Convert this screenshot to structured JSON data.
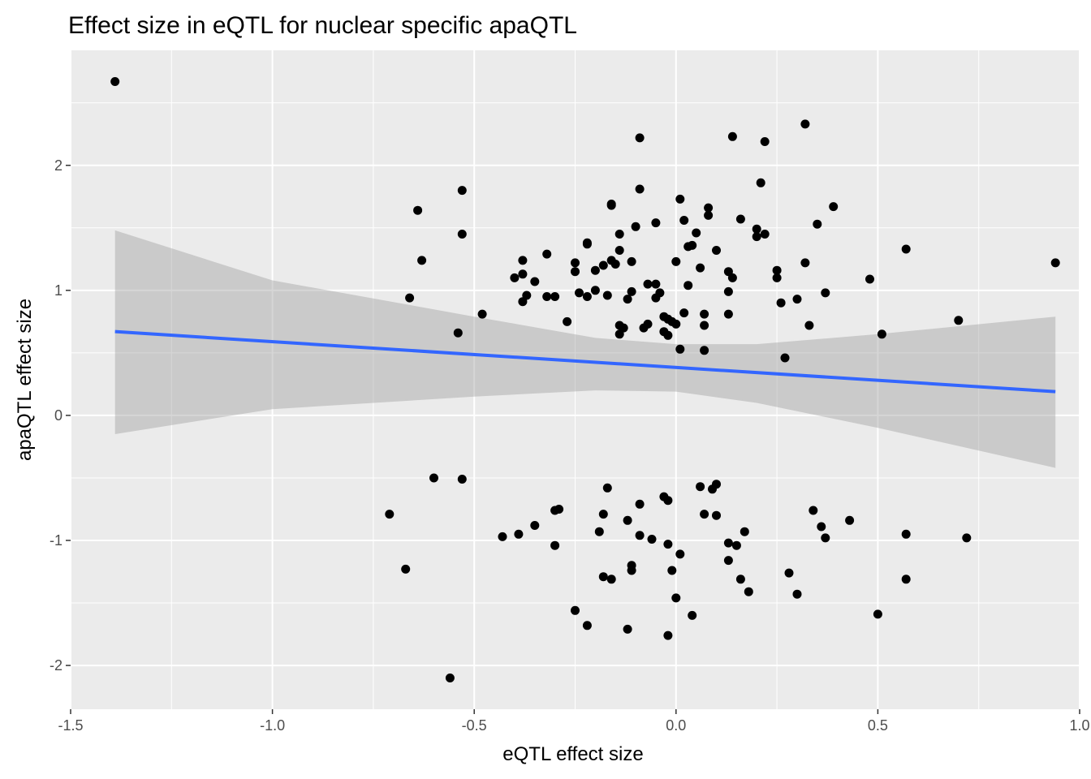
{
  "chart_data": {
    "type": "scatter",
    "title": "Effect size in eQTL for nuclear specific apaQTL",
    "xlabel": "eQTL effect size",
    "ylabel": "apaQTL effect size",
    "xlim": [
      -1.5,
      1.0
    ],
    "ylim": [
      -2.35,
      2.92
    ],
    "x_ticks": [
      -1.5,
      -1.0,
      -0.5,
      0.0,
      0.5,
      1.0
    ],
    "x_tick_labels": [
      "-1.5",
      "-1.0",
      "-0.5",
      "0.0",
      "0.5",
      "1.0"
    ],
    "y_ticks": [
      -2,
      -1,
      0,
      1,
      2
    ],
    "y_tick_labels": [
      "-2",
      "-1",
      "0",
      "1",
      "2"
    ],
    "grid": true,
    "colors": {
      "panel": "#ebebeb",
      "grid": "#ffffff",
      "points": "#000000",
      "trend_line": "#3366ff",
      "confidence_band": "#999999"
    },
    "series": [
      {
        "name": "points",
        "points": [
          [
            -1.39,
            2.67
          ],
          [
            -0.64,
            1.64
          ],
          [
            -0.63,
            1.24
          ],
          [
            -0.66,
            0.94
          ],
          [
            -0.53,
            1.8
          ],
          [
            -0.53,
            1.45
          ],
          [
            -0.48,
            0.81
          ],
          [
            -0.54,
            0.66
          ],
          [
            -0.4,
            1.1
          ],
          [
            -0.38,
            1.24
          ],
          [
            -0.38,
            1.13
          ],
          [
            -0.38,
            0.91
          ],
          [
            -0.37,
            0.96
          ],
          [
            -0.35,
            1.07
          ],
          [
            -0.32,
            1.29
          ],
          [
            -0.32,
            0.95
          ],
          [
            -0.3,
            0.95
          ],
          [
            -0.27,
            0.75
          ],
          [
            -0.25,
            1.22
          ],
          [
            -0.25,
            1.15
          ],
          [
            -0.24,
            0.98
          ],
          [
            -0.22,
            1.37
          ],
          [
            -0.22,
            1.38
          ],
          [
            -0.22,
            0.95
          ],
          [
            -0.2,
            1.16
          ],
          [
            -0.2,
            1.0
          ],
          [
            -0.18,
            1.2
          ],
          [
            -0.17,
            0.96
          ],
          [
            -0.16,
            1.68
          ],
          [
            -0.16,
            1.69
          ],
          [
            -0.16,
            1.24
          ],
          [
            -0.15,
            1.21
          ],
          [
            -0.14,
            1.45
          ],
          [
            -0.14,
            1.32
          ],
          [
            -0.14,
            0.72
          ],
          [
            -0.14,
            0.65
          ],
          [
            -0.13,
            0.7
          ],
          [
            -0.12,
            0.93
          ],
          [
            -0.11,
            1.23
          ],
          [
            -0.11,
            0.99
          ],
          [
            -0.1,
            1.51
          ],
          [
            -0.09,
            1.81
          ],
          [
            -0.09,
            2.22
          ],
          [
            -0.08,
            0.7
          ],
          [
            -0.07,
            1.05
          ],
          [
            -0.07,
            0.73
          ],
          [
            -0.05,
            1.54
          ],
          [
            -0.05,
            1.05
          ],
          [
            -0.05,
            0.94
          ],
          [
            -0.04,
            0.98
          ],
          [
            -0.03,
            0.79
          ],
          [
            -0.03,
            0.67
          ],
          [
            -0.02,
            0.64
          ],
          [
            -0.02,
            0.77
          ],
          [
            -0.01,
            0.75
          ],
          [
            0.0,
            1.23
          ],
          [
            0.0,
            0.73
          ],
          [
            0.01,
            1.73
          ],
          [
            0.01,
            0.53
          ],
          [
            0.02,
            0.82
          ],
          [
            0.02,
            1.56
          ],
          [
            0.03,
            1.35
          ],
          [
            0.03,
            1.04
          ],
          [
            0.04,
            1.36
          ],
          [
            0.05,
            1.46
          ],
          [
            0.06,
            1.18
          ],
          [
            0.07,
            0.52
          ],
          [
            0.07,
            0.72
          ],
          [
            0.07,
            0.81
          ],
          [
            0.08,
            1.66
          ],
          [
            0.08,
            1.6
          ],
          [
            0.1,
            1.32
          ],
          [
            0.13,
            1.15
          ],
          [
            0.13,
            0.99
          ],
          [
            0.13,
            0.81
          ],
          [
            0.14,
            1.1
          ],
          [
            0.14,
            2.23
          ],
          [
            0.16,
            1.57
          ],
          [
            0.2,
            1.49
          ],
          [
            0.2,
            1.43
          ],
          [
            0.21,
            1.86
          ],
          [
            0.22,
            2.19
          ],
          [
            0.22,
            1.45
          ],
          [
            0.25,
            1.1
          ],
          [
            0.25,
            1.16
          ],
          [
            0.26,
            0.9
          ],
          [
            0.27,
            0.46
          ],
          [
            0.3,
            0.93
          ],
          [
            0.32,
            2.33
          ],
          [
            0.32,
            1.22
          ],
          [
            0.33,
            0.72
          ],
          [
            0.35,
            1.53
          ],
          [
            0.37,
            0.98
          ],
          [
            0.39,
            1.67
          ],
          [
            0.48,
            1.09
          ],
          [
            0.51,
            0.65
          ],
          [
            0.57,
            1.33
          ],
          [
            0.7,
            0.76
          ],
          [
            0.94,
            1.22
          ],
          [
            -0.71,
            -0.79
          ],
          [
            -0.67,
            -1.23
          ],
          [
            -0.6,
            -0.5
          ],
          [
            -0.53,
            -0.51
          ],
          [
            -0.56,
            -2.1
          ],
          [
            -0.43,
            -0.97
          ],
          [
            -0.39,
            -0.95
          ],
          [
            -0.35,
            -0.88
          ],
          [
            -0.3,
            -0.76
          ],
          [
            -0.3,
            -1.04
          ],
          [
            -0.29,
            -0.75
          ],
          [
            -0.25,
            -1.56
          ],
          [
            -0.22,
            -1.68
          ],
          [
            -0.19,
            -0.93
          ],
          [
            -0.18,
            -1.29
          ],
          [
            -0.18,
            -0.79
          ],
          [
            -0.17,
            -0.58
          ],
          [
            -0.16,
            -1.31
          ],
          [
            -0.12,
            -0.84
          ],
          [
            -0.12,
            -1.71
          ],
          [
            -0.11,
            -1.2
          ],
          [
            -0.11,
            -1.24
          ],
          [
            -0.09,
            -0.71
          ],
          [
            -0.09,
            -0.96
          ],
          [
            -0.06,
            -0.99
          ],
          [
            -0.03,
            -0.65
          ],
          [
            -0.02,
            -0.68
          ],
          [
            -0.02,
            -1.03
          ],
          [
            -0.02,
            -1.76
          ],
          [
            -0.01,
            -1.24
          ],
          [
            0.0,
            -1.46
          ],
          [
            0.01,
            -1.11
          ],
          [
            0.04,
            -1.6
          ],
          [
            0.06,
            -0.57
          ],
          [
            0.07,
            -0.79
          ],
          [
            0.09,
            -0.59
          ],
          [
            0.1,
            -0.55
          ],
          [
            0.1,
            -0.8
          ],
          [
            0.13,
            -1.02
          ],
          [
            0.13,
            -1.16
          ],
          [
            0.15,
            -1.04
          ],
          [
            0.16,
            -1.31
          ],
          [
            0.17,
            -0.93
          ],
          [
            0.18,
            -1.41
          ],
          [
            0.28,
            -1.26
          ],
          [
            0.3,
            -1.43
          ],
          [
            0.34,
            -0.76
          ],
          [
            0.36,
            -0.89
          ],
          [
            0.37,
            -0.98
          ],
          [
            0.43,
            -0.84
          ],
          [
            0.5,
            -1.59
          ],
          [
            0.57,
            -0.95
          ],
          [
            0.57,
            -1.31
          ],
          [
            0.72,
            -0.98
          ]
        ]
      },
      {
        "name": "linear fit",
        "line": [
          [
            -1.39,
            0.67
          ],
          [
            0.94,
            0.19
          ]
        ]
      },
      {
        "name": "95% confidence band",
        "upper": [
          [
            -1.39,
            1.48
          ],
          [
            -1.0,
            1.08
          ],
          [
            -0.5,
            0.79
          ],
          [
            -0.2,
            0.62
          ],
          [
            0.0,
            0.57
          ],
          [
            0.2,
            0.57
          ],
          [
            0.5,
            0.65
          ],
          [
            0.94,
            0.79
          ]
        ],
        "lower": [
          [
            -1.39,
            -0.15
          ],
          [
            -1.0,
            0.05
          ],
          [
            -0.5,
            0.15
          ],
          [
            -0.2,
            0.2
          ],
          [
            0.0,
            0.19
          ],
          [
            0.2,
            0.1
          ],
          [
            0.5,
            -0.1
          ],
          [
            0.94,
            -0.42
          ]
        ]
      }
    ]
  }
}
